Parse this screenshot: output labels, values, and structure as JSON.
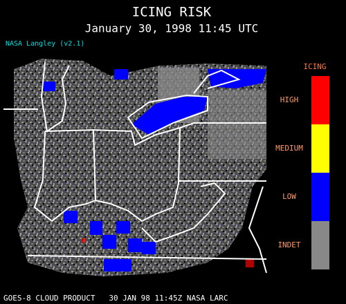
{
  "header": {
    "title": "ICING RISK",
    "timestamp": "January 30, 1998 11:45 UTC",
    "version": "NASA Langley (v2.1)"
  },
  "legend": {
    "title": "ICING",
    "levels": [
      {
        "label": "HIGH",
        "color": "#ff0000"
      },
      {
        "label": "MEDIUM",
        "color": "#ffff00"
      },
      {
        "label": "LOW",
        "color": "#0000ff"
      },
      {
        "label": "INDET",
        "color": "#888888"
      }
    ]
  },
  "footer": "GOES-8 CLOUD PRODUCT   30 JAN 98 11:45Z NASA LARC"
}
